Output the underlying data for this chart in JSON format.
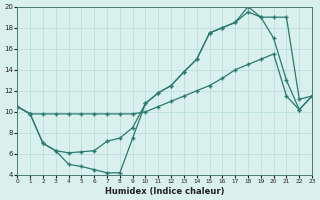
{
  "line1_x": [
    0,
    1,
    2,
    3,
    4,
    5,
    6,
    7,
    8,
    9,
    10,
    11,
    12,
    13,
    14,
    15,
    16,
    17,
    18,
    19,
    20,
    21,
    22,
    23
  ],
  "line1_y": [
    10.5,
    9.8,
    9.8,
    9.8,
    9.8,
    9.8,
    9.8,
    9.8,
    9.8,
    9.8,
    10.0,
    10.5,
    11.0,
    11.5,
    12.0,
    12.5,
    13.2,
    14.0,
    14.5,
    15.0,
    15.5,
    11.5,
    10.2,
    11.5
  ],
  "line2_x": [
    0,
    1,
    2,
    3,
    4,
    5,
    6,
    7,
    8,
    9,
    10,
    11,
    12,
    13,
    14,
    15,
    16,
    17,
    18,
    19,
    20,
    21,
    22,
    23
  ],
  "line2_y": [
    10.5,
    9.8,
    7.0,
    6.3,
    6.1,
    6.2,
    6.3,
    7.2,
    7.5,
    8.5,
    10.8,
    11.8,
    12.5,
    13.8,
    15.0,
    17.5,
    18.0,
    18.5,
    20.0,
    19.0,
    19.0,
    19.0,
    11.2,
    11.5
  ],
  "line3_x": [
    0,
    1,
    2,
    3,
    4,
    5,
    6,
    7,
    8,
    9,
    10,
    11,
    12,
    13,
    14,
    15,
    16,
    17,
    18,
    19,
    20,
    21,
    22,
    23
  ],
  "line3_y": [
    10.5,
    9.8,
    7.0,
    6.3,
    5.0,
    4.8,
    4.5,
    4.2,
    4.2,
    7.5,
    10.8,
    11.8,
    12.5,
    13.8,
    15.0,
    17.5,
    18.0,
    18.5,
    19.5,
    19.0,
    17.0,
    13.0,
    10.2,
    11.5
  ],
  "color": "#2a7a6e",
  "bg_color": "#daf0ed",
  "grid_color": "#b5ddd8",
  "xlabel": "Humidex (Indice chaleur)",
  "ylim": [
    4,
    20
  ],
  "xlim": [
    0,
    23
  ],
  "yticks": [
    4,
    6,
    8,
    10,
    12,
    14,
    16,
    18,
    20
  ],
  "xticks": [
    0,
    1,
    2,
    3,
    4,
    5,
    6,
    7,
    8,
    9,
    10,
    11,
    12,
    13,
    14,
    15,
    16,
    17,
    18,
    19,
    20,
    21,
    22,
    23
  ]
}
